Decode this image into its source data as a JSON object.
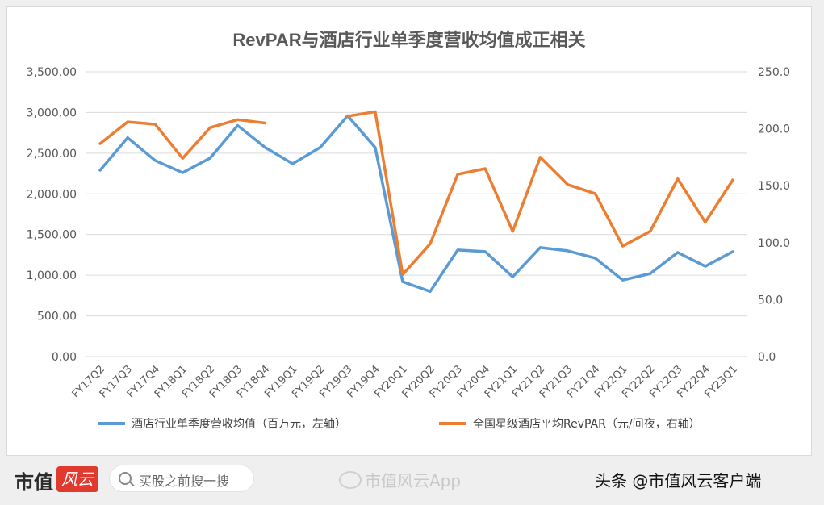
{
  "chart_data": {
    "type": "line",
    "title": "RevPAR与酒店行业单季度营收均值成正相关",
    "categories": [
      "FY17Q2",
      "FY17Q3",
      "FY17Q4",
      "FY18Q1",
      "FY18Q2",
      "FY18Q3",
      "FY18Q4",
      "FY19Q1",
      "FY19Q2",
      "FY19Q3",
      "FY19Q4",
      "FY20Q1",
      "FY20Q2",
      "FY20Q3",
      "FY20Q4",
      "FY21Q1",
      "FY21Q2",
      "FY21Q3",
      "FY21Q4",
      "FY22Q1",
      "FY22Q2",
      "FY22Q3",
      "FY22Q4",
      "FY23Q1"
    ],
    "left_axis": {
      "ylim": [
        0,
        3500
      ],
      "ticks": [
        "0.00",
        "500.00",
        "1,000.00",
        "1,500.00",
        "2,000.00",
        "2,500.00",
        "3,000.00",
        "3,500.00"
      ]
    },
    "right_axis": {
      "ylim": [
        0,
        250
      ],
      "ticks": [
        "0.0",
        "50.0",
        "100.0",
        "150.0",
        "200.0",
        "250.0"
      ]
    },
    "grid": true,
    "legend_position": "bottom",
    "series": [
      {
        "name": "酒店行业单季度营收均值（百万元，左轴）",
        "axis": "left",
        "color": "#5b9bd5",
        "values": [
          2290,
          2690,
          2410,
          2260,
          2440,
          2840,
          2570,
          2370,
          2570,
          2960,
          2570,
          920,
          800,
          1310,
          1290,
          980,
          1340,
          1300,
          1210,
          940,
          1020,
          1280,
          1110,
          1290
        ]
      },
      {
        "name": "全国星级酒店平均RevPAR（元/间夜，右轴）",
        "axis": "right",
        "color": "#ed7d31",
        "segments": [
          {
            "values": [
              187,
              206,
              204,
              174,
              201,
              208,
              205
            ]
          },
          {
            "start_index": 9,
            "values": [
              211,
              215,
              72,
              99,
              160,
              165,
              110,
              175,
              151,
              143,
              97,
              110,
              156,
              118,
              155
            ]
          }
        ]
      }
    ]
  },
  "footer": {
    "brand": "市值",
    "brand_mark": "风云",
    "search_placeholder": "买股之前搜一搜",
    "weibo_text": "市值风云App",
    "toutiao_text": "头条 @市值风云客户端"
  }
}
